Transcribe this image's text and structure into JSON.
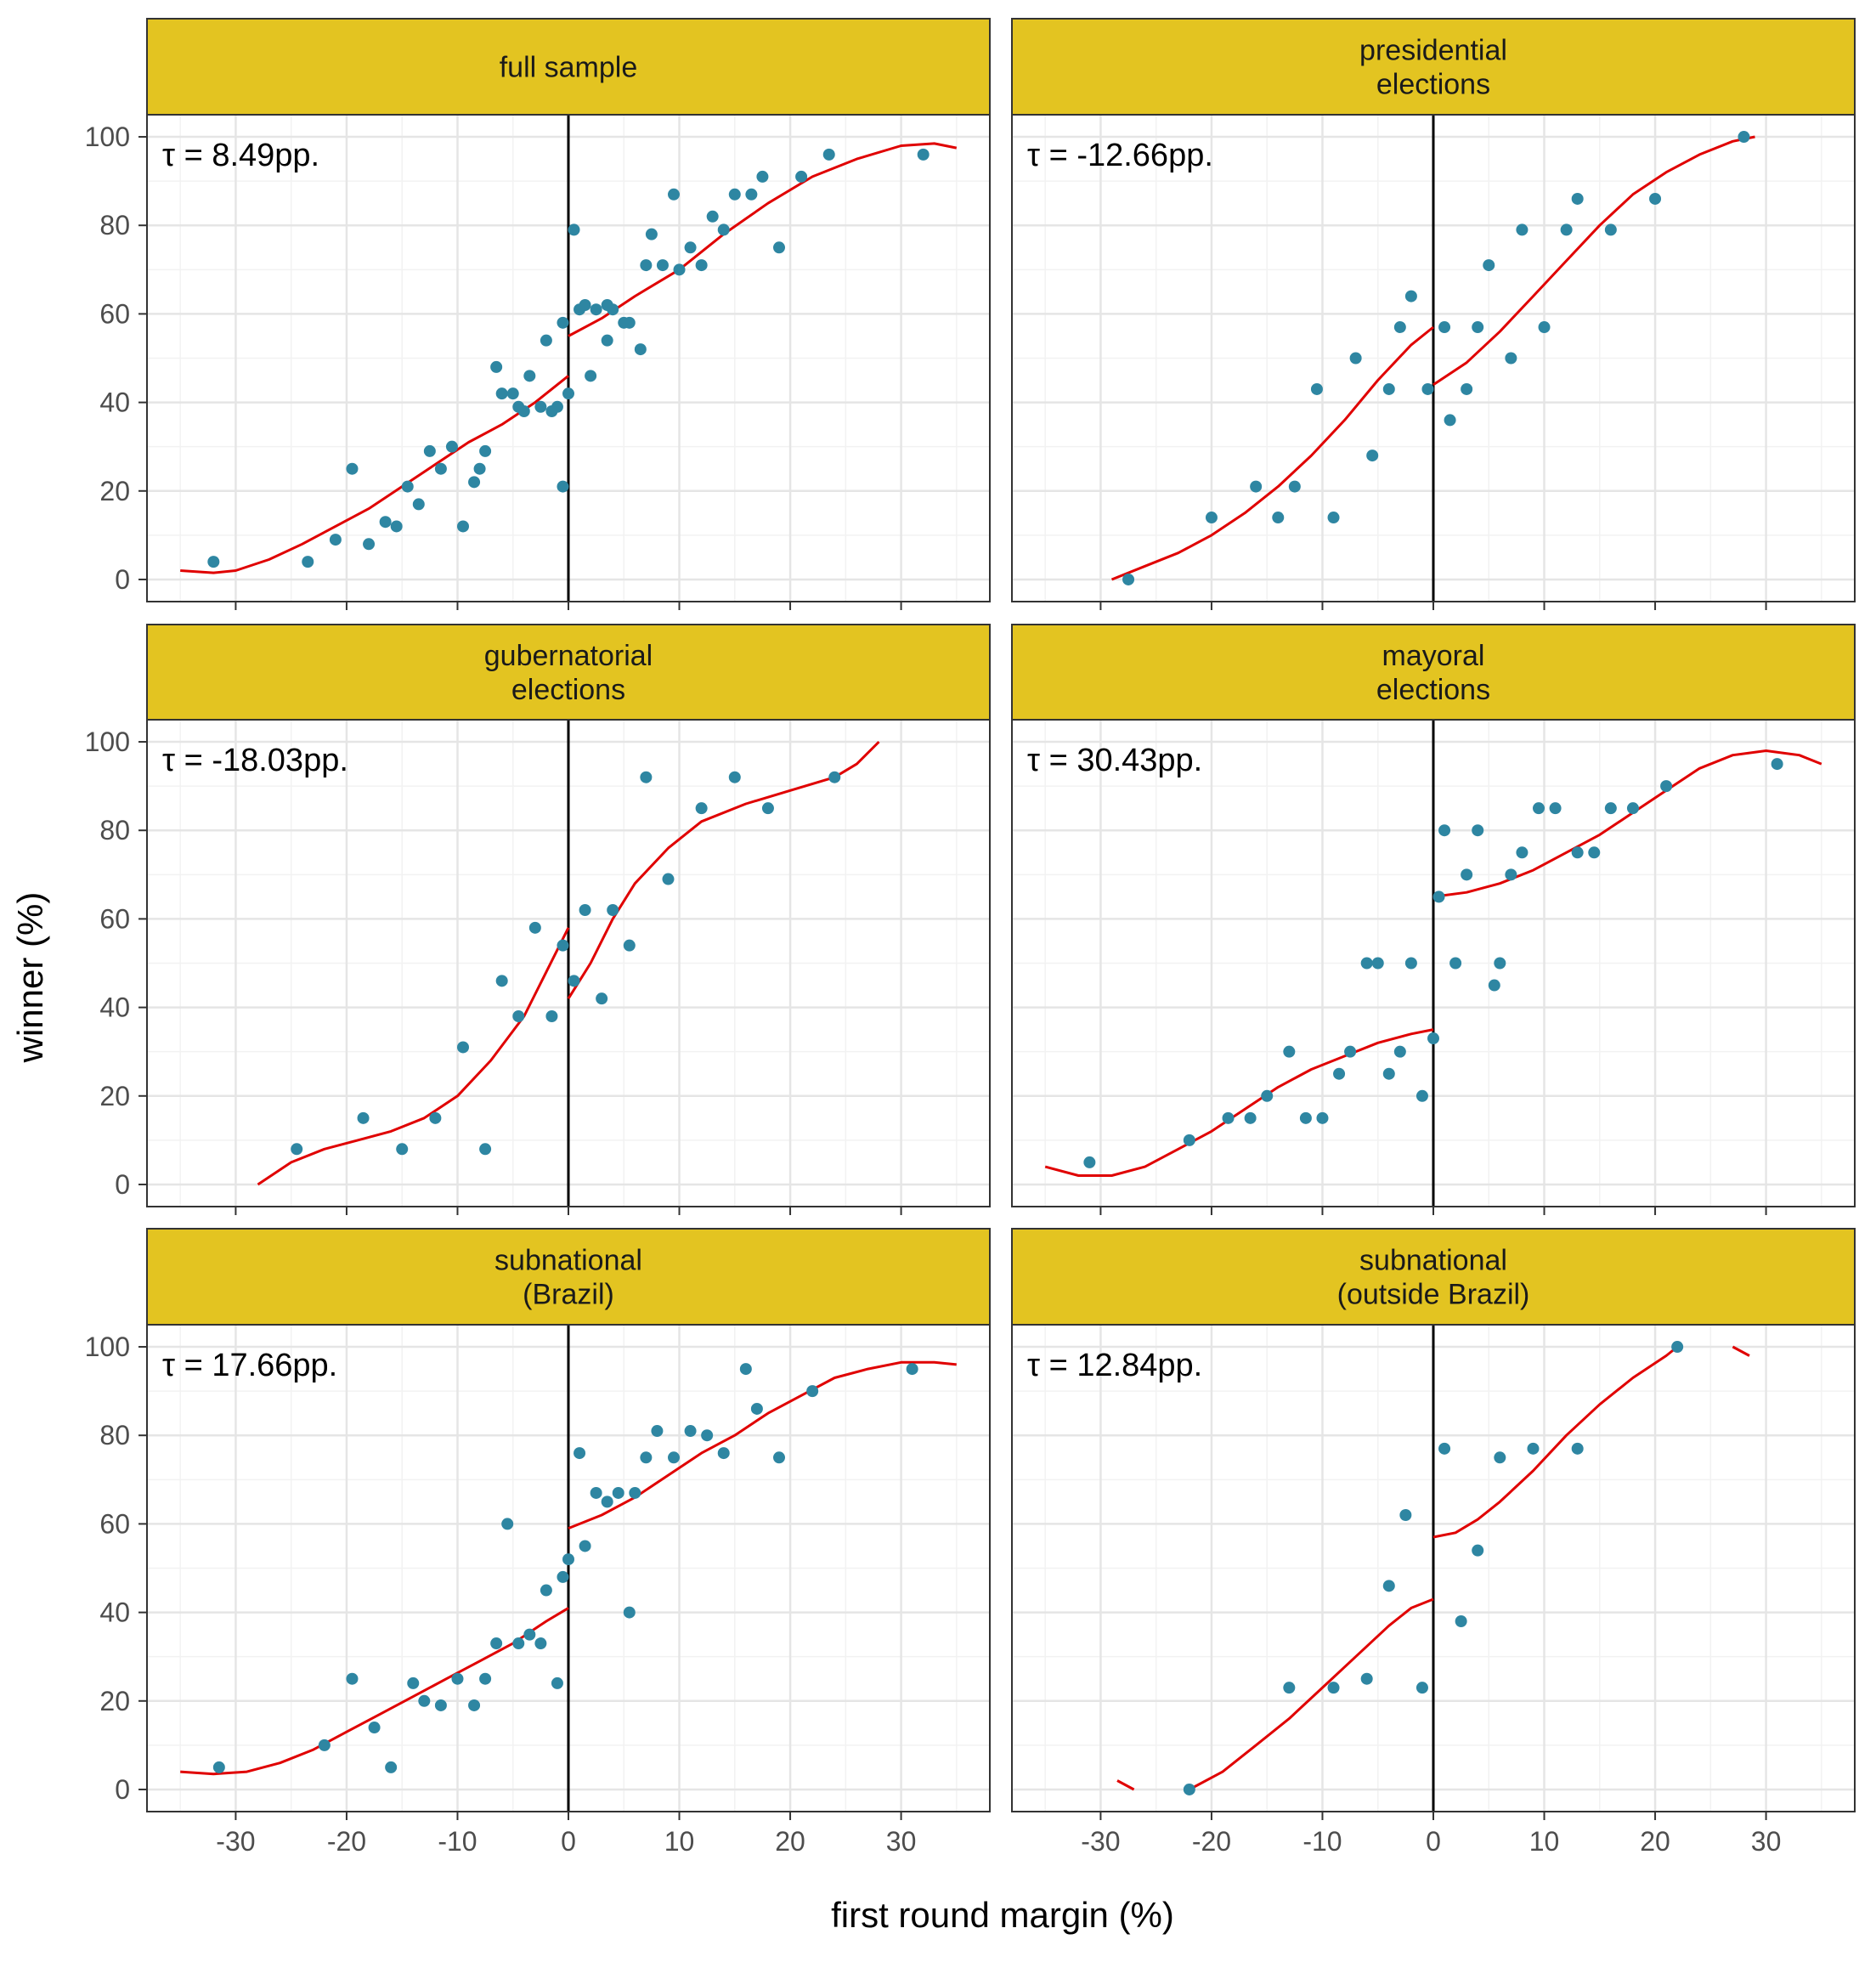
{
  "x_axis_title": "first round margin (%)",
  "y_axis_title": "winner (%)",
  "colors": {
    "strip_fill": "#E3C421",
    "point": "#2E86A2",
    "fit_line": "#E00000",
    "cutoff_line": "#000000",
    "grid_major": "#E5E5E5",
    "grid_minor": "#F2F2F2",
    "panel_border": "#333333"
  },
  "chart_data": [
    {
      "type": "scatter",
      "title": "full sample",
      "annotation": "τ = 8.49pp.",
      "xlim": [
        -38,
        38
      ],
      "ylim": [
        -5,
        105
      ],
      "x_ticks": [
        "-30",
        "-20",
        "-10",
        "0",
        "10",
        "20",
        "30"
      ],
      "y_ticks": [
        "0",
        "20",
        "40",
        "60",
        "80",
        "100"
      ],
      "grid": true,
      "vline_x": 0,
      "points": [
        [
          -32,
          4
        ],
        [
          -23.5,
          4
        ],
        [
          -21,
          9
        ],
        [
          -19.5,
          25
        ],
        [
          -18,
          8
        ],
        [
          -16.5,
          13
        ],
        [
          -15.5,
          12
        ],
        [
          -14.5,
          21
        ],
        [
          -13.5,
          17
        ],
        [
          -12.5,
          29
        ],
        [
          -11.5,
          25
        ],
        [
          -10.5,
          30
        ],
        [
          -9.5,
          12
        ],
        [
          -8.5,
          22
        ],
        [
          -8,
          25
        ],
        [
          -7.5,
          29
        ],
        [
          -6.5,
          48
        ],
        [
          -6,
          42
        ],
        [
          -5,
          42
        ],
        [
          -4.5,
          39
        ],
        [
          -4,
          38
        ],
        [
          -3.5,
          46
        ],
        [
          -2.5,
          39
        ],
        [
          -2,
          54
        ],
        [
          -1.5,
          38
        ],
        [
          -1,
          39
        ],
        [
          -0.5,
          21
        ],
        [
          -0.5,
          58
        ],
        [
          0,
          42
        ],
        [
          0.5,
          79
        ],
        [
          1,
          61
        ],
        [
          1.5,
          62
        ],
        [
          2,
          46
        ],
        [
          2.5,
          61
        ],
        [
          3.5,
          54
        ],
        [
          3.5,
          62
        ],
        [
          4,
          61
        ],
        [
          5,
          58
        ],
        [
          5.5,
          58
        ],
        [
          6.5,
          52
        ],
        [
          7,
          71
        ],
        [
          7.5,
          78
        ],
        [
          8.5,
          71
        ],
        [
          9.5,
          87
        ],
        [
          10,
          70
        ],
        [
          11,
          75
        ],
        [
          12,
          71
        ],
        [
          13,
          82
        ],
        [
          14,
          79
        ],
        [
          15,
          87
        ],
        [
          16.5,
          87
        ],
        [
          17.5,
          91
        ],
        [
          19,
          75
        ],
        [
          21,
          91
        ],
        [
          23.5,
          96
        ],
        [
          32,
          96
        ]
      ],
      "fit_left": [
        [
          -35,
          2
        ],
        [
          -32,
          1.5
        ],
        [
          -30,
          2
        ],
        [
          -27,
          4.5
        ],
        [
          -24,
          8
        ],
        [
          -21,
          12
        ],
        [
          -18,
          16
        ],
        [
          -15,
          21
        ],
        [
          -12,
          26
        ],
        [
          -9,
          31
        ],
        [
          -6,
          35
        ],
        [
          -3,
          40
        ],
        [
          0,
          46
        ]
      ],
      "fit_right": [
        [
          0,
          55
        ],
        [
          3,
          59
        ],
        [
          6,
          64
        ],
        [
          10,
          70
        ],
        [
          14,
          78
        ],
        [
          18,
          85
        ],
        [
          22,
          91
        ],
        [
          26,
          95
        ],
        [
          30,
          98
        ],
        [
          33,
          98.5
        ],
        [
          35,
          97.5
        ]
      ]
    },
    {
      "type": "scatter",
      "title": "presidential\nelections",
      "annotation": "τ = -12.66pp.",
      "xlim": [
        -38,
        38
      ],
      "ylim": [
        -5,
        105
      ],
      "x_ticks": [
        "-30",
        "-20",
        "-10",
        "0",
        "10",
        "20",
        "30"
      ],
      "y_ticks": [
        "0",
        "20",
        "40",
        "60",
        "80",
        "100"
      ],
      "grid": true,
      "vline_x": 0,
      "points": [
        [
          -27.5,
          0
        ],
        [
          -20,
          14
        ],
        [
          -16,
          21
        ],
        [
          -14,
          14
        ],
        [
          -12.5,
          21
        ],
        [
          -10.5,
          43
        ],
        [
          -9,
          14
        ],
        [
          -7,
          50
        ],
        [
          -5.5,
          28
        ],
        [
          -4,
          43
        ],
        [
          -3,
          57
        ],
        [
          -2,
          64
        ],
        [
          -0.5,
          43
        ],
        [
          1,
          57
        ],
        [
          1.5,
          36
        ],
        [
          3,
          43
        ],
        [
          4,
          57
        ],
        [
          5,
          71
        ],
        [
          7,
          50
        ],
        [
          8,
          79
        ],
        [
          10,
          57
        ],
        [
          12,
          79
        ],
        [
          13,
          86
        ],
        [
          16,
          79
        ],
        [
          20,
          86
        ],
        [
          28,
          100
        ]
      ],
      "fit_left": [
        [
          -29,
          0
        ],
        [
          -26,
          3
        ],
        [
          -23,
          6
        ],
        [
          -20,
          10
        ],
        [
          -17,
          15
        ],
        [
          -14,
          21
        ],
        [
          -11,
          28
        ],
        [
          -8,
          36
        ],
        [
          -5,
          45
        ],
        [
          -2,
          53
        ],
        [
          0,
          57
        ]
      ],
      "fit_right": [
        [
          0,
          44
        ],
        [
          3,
          49
        ],
        [
          6,
          56
        ],
        [
          9,
          64
        ],
        [
          12,
          72
        ],
        [
          15,
          80
        ],
        [
          18,
          87
        ],
        [
          21,
          92
        ],
        [
          24,
          96
        ],
        [
          27,
          99
        ],
        [
          29,
          100
        ]
      ]
    },
    {
      "type": "scatter",
      "title": "gubernatorial\nelections",
      "annotation": "τ = -18.03pp.",
      "xlim": [
        -38,
        38
      ],
      "ylim": [
        -5,
        105
      ],
      "x_ticks": [
        "-30",
        "-20",
        "-10",
        "0",
        "10",
        "20",
        "30"
      ],
      "y_ticks": [
        "0",
        "20",
        "40",
        "60",
        "80",
        "100"
      ],
      "grid": true,
      "vline_x": 0,
      "points": [
        [
          -24.5,
          8
        ],
        [
          -18.5,
          15
        ],
        [
          -15,
          8
        ],
        [
          -12,
          15
        ],
        [
          -9.5,
          31
        ],
        [
          -7.5,
          8
        ],
        [
          -6,
          46
        ],
        [
          -4.5,
          38
        ],
        [
          -3,
          58
        ],
        [
          -1.5,
          38
        ],
        [
          -0.5,
          54
        ],
        [
          0.5,
          46
        ],
        [
          1.5,
          62
        ],
        [
          3,
          42
        ],
        [
          4,
          62
        ],
        [
          5.5,
          54
        ],
        [
          7,
          92
        ],
        [
          9,
          69
        ],
        [
          12,
          85
        ],
        [
          15,
          92
        ],
        [
          18,
          85
        ],
        [
          24,
          92
        ]
      ],
      "fit_left": [
        [
          -28,
          0
        ],
        [
          -25,
          5
        ],
        [
          -22,
          8
        ],
        [
          -19,
          10
        ],
        [
          -16,
          12
        ],
        [
          -13,
          15
        ],
        [
          -10,
          20
        ],
        [
          -7,
          28
        ],
        [
          -4,
          38
        ],
        [
          -2,
          48
        ],
        [
          0,
          58
        ]
      ],
      "fit_right": [
        [
          0,
          42
        ],
        [
          2,
          50
        ],
        [
          4,
          60
        ],
        [
          6,
          68
        ],
        [
          9,
          76
        ],
        [
          12,
          82
        ],
        [
          16,
          86
        ],
        [
          20,
          89
        ],
        [
          24,
          92
        ],
        [
          26,
          95
        ],
        [
          28,
          100
        ]
      ]
    },
    {
      "type": "scatter",
      "title": "mayoral\nelections",
      "annotation": "τ = 30.43pp.",
      "xlim": [
        -38,
        38
      ],
      "ylim": [
        -5,
        105
      ],
      "x_ticks": [
        "-30",
        "-20",
        "-10",
        "0",
        "10",
        "20",
        "30"
      ],
      "y_ticks": [
        "0",
        "20",
        "40",
        "60",
        "80",
        "100"
      ],
      "grid": true,
      "vline_x": 0,
      "points": [
        [
          -31,
          5
        ],
        [
          -22,
          10
        ],
        [
          -18.5,
          15
        ],
        [
          -16.5,
          15
        ],
        [
          -15,
          20
        ],
        [
          -13,
          30
        ],
        [
          -11.5,
          15
        ],
        [
          -10,
          15
        ],
        [
          -8.5,
          25
        ],
        [
          -7.5,
          30
        ],
        [
          -6,
          50
        ],
        [
          -5,
          50
        ],
        [
          -4,
          25
        ],
        [
          -3,
          30
        ],
        [
          -2,
          50
        ],
        [
          -1,
          20
        ],
        [
          0,
          33
        ],
        [
          0.5,
          65
        ],
        [
          1,
          80
        ],
        [
          2,
          50
        ],
        [
          3,
          70
        ],
        [
          4,
          80
        ],
        [
          5.5,
          45
        ],
        [
          6,
          50
        ],
        [
          7,
          70
        ],
        [
          8,
          75
        ],
        [
          9.5,
          85
        ],
        [
          11,
          85
        ],
        [
          13,
          75
        ],
        [
          14.5,
          75
        ],
        [
          16,
          85
        ],
        [
          18,
          85
        ],
        [
          21,
          90
        ],
        [
          31,
          95
        ]
      ],
      "fit_left": [
        [
          -35,
          4
        ],
        [
          -32,
          2
        ],
        [
          -29,
          2
        ],
        [
          -26,
          4
        ],
        [
          -23,
          8
        ],
        [
          -20,
          12
        ],
        [
          -17,
          17
        ],
        [
          -14,
          22
        ],
        [
          -11,
          26
        ],
        [
          -8,
          29
        ],
        [
          -5,
          32
        ],
        [
          -2,
          34
        ],
        [
          0,
          35
        ]
      ],
      "fit_right": [
        [
          0,
          65
        ],
        [
          3,
          66
        ],
        [
          6,
          68
        ],
        [
          9,
          71
        ],
        [
          12,
          75
        ],
        [
          15,
          79
        ],
        [
          18,
          84
        ],
        [
          21,
          89
        ],
        [
          24,
          94
        ],
        [
          27,
          97
        ],
        [
          30,
          98
        ],
        [
          33,
          97
        ],
        [
          35,
          95
        ]
      ]
    },
    {
      "type": "scatter",
      "title": "subnational\n(Brazil)",
      "annotation": "τ = 17.66pp.",
      "xlim": [
        -38,
        38
      ],
      "ylim": [
        -5,
        105
      ],
      "x_ticks": [
        "-30",
        "-20",
        "-10",
        "0",
        "10",
        "20",
        "30"
      ],
      "y_ticks": [
        "0",
        "20",
        "40",
        "60",
        "80",
        "100"
      ],
      "grid": true,
      "vline_x": 0,
      "points": [
        [
          -31.5,
          5
        ],
        [
          -22,
          10
        ],
        [
          -19.5,
          25
        ],
        [
          -17.5,
          14
        ],
        [
          -16,
          5
        ],
        [
          -14,
          24
        ],
        [
          -13,
          20
        ],
        [
          -11.5,
          19
        ],
        [
          -10,
          25
        ],
        [
          -8.5,
          19
        ],
        [
          -7.5,
          25
        ],
        [
          -6.5,
          33
        ],
        [
          -5.5,
          60
        ],
        [
          -4.5,
          33
        ],
        [
          -3.5,
          35
        ],
        [
          -2.5,
          33
        ],
        [
          -2,
          45
        ],
        [
          -1,
          24
        ],
        [
          -0.5,
          48
        ],
        [
          0,
          52
        ],
        [
          1,
          76
        ],
        [
          1.5,
          55
        ],
        [
          2.5,
          67
        ],
        [
          3.5,
          65
        ],
        [
          4.5,
          67
        ],
        [
          5.5,
          40
        ],
        [
          6,
          67
        ],
        [
          7,
          75
        ],
        [
          8,
          81
        ],
        [
          9.5,
          75
        ],
        [
          11,
          81
        ],
        [
          12.5,
          80
        ],
        [
          14,
          76
        ],
        [
          16,
          95
        ],
        [
          17,
          86
        ],
        [
          19,
          75
        ],
        [
          22,
          90
        ],
        [
          31,
          95
        ]
      ],
      "fit_left": [
        [
          -35,
          4
        ],
        [
          -32,
          3.5
        ],
        [
          -29,
          4
        ],
        [
          -26,
          6
        ],
        [
          -23,
          9
        ],
        [
          -20,
          13
        ],
        [
          -17,
          17
        ],
        [
          -14,
          21
        ],
        [
          -11,
          25
        ],
        [
          -8,
          29
        ],
        [
          -5,
          33
        ],
        [
          -2,
          38
        ],
        [
          0,
          41
        ]
      ],
      "fit_right": [
        [
          0,
          59
        ],
        [
          3,
          62
        ],
        [
          6,
          66
        ],
        [
          9,
          71
        ],
        [
          12,
          76
        ],
        [
          15,
          80
        ],
        [
          18,
          85
        ],
        [
          21,
          89
        ],
        [
          24,
          93
        ],
        [
          27,
          95
        ],
        [
          30,
          96.5
        ],
        [
          33,
          96.5
        ],
        [
          35,
          96
        ]
      ]
    },
    {
      "type": "scatter",
      "title": "subnational\n(outside Brazil)",
      "annotation": "τ = 12.84pp.",
      "xlim": [
        -38,
        38
      ],
      "ylim": [
        -5,
        105
      ],
      "x_ticks": [
        "-30",
        "-20",
        "-10",
        "0",
        "10",
        "20",
        "30"
      ],
      "y_ticks": [
        "0",
        "20",
        "40",
        "60",
        "80",
        "100"
      ],
      "grid": true,
      "vline_x": 0,
      "points": [
        [
          -22,
          0
        ],
        [
          -13,
          23
        ],
        [
          -9,
          23
        ],
        [
          -6,
          25
        ],
        [
          -4,
          46
        ],
        [
          -2.5,
          62
        ],
        [
          -1,
          23
        ],
        [
          1,
          77
        ],
        [
          2.5,
          38
        ],
        [
          4,
          54
        ],
        [
          6,
          75
        ],
        [
          9,
          77
        ],
        [
          13,
          77
        ],
        [
          22,
          100
        ]
      ],
      "fit_left": [
        [
          -22,
          0
        ],
        [
          -19,
          4
        ],
        [
          -16,
          10
        ],
        [
          -13,
          16
        ],
        [
          -10,
          23
        ],
        [
          -7,
          30
        ],
        [
          -4,
          37
        ],
        [
          -2,
          41
        ],
        [
          0,
          43
        ]
      ],
      "fit_right": [
        [
          0,
          57
        ],
        [
          2,
          58
        ],
        [
          4,
          61
        ],
        [
          6,
          65
        ],
        [
          9,
          72
        ],
        [
          12,
          80
        ],
        [
          15,
          87
        ],
        [
          18,
          93
        ],
        [
          21,
          98
        ],
        [
          22,
          100
        ]
      ],
      "fit_extra": [
        [
          [
            -28.5,
            2
          ],
          [
            -27,
            0
          ]
        ],
        [
          [
            27,
            100
          ],
          [
            28.5,
            98
          ]
        ]
      ]
    }
  ]
}
